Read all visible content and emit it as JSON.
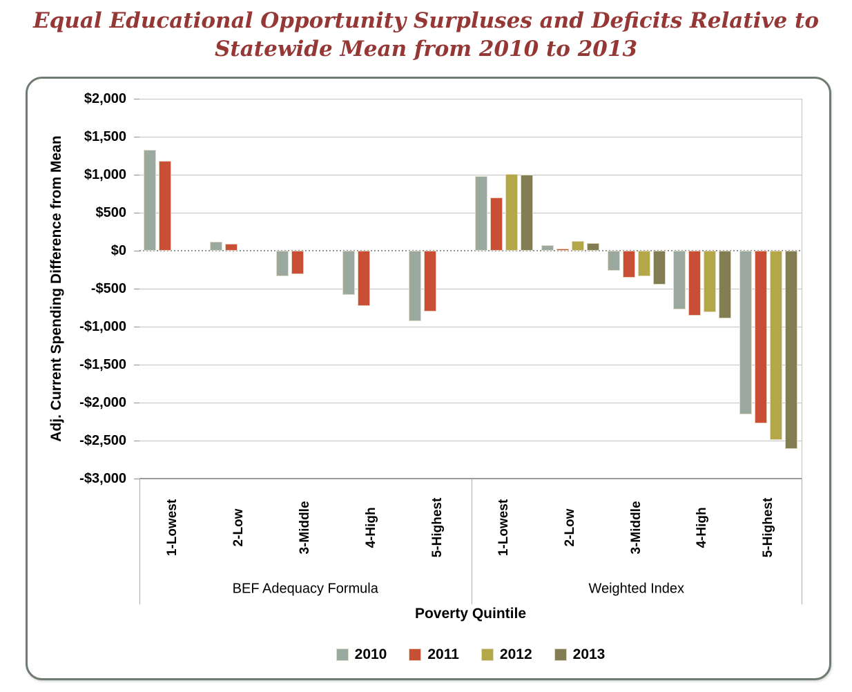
{
  "title": {
    "line1": "Equal Educational Opportunity Surpluses and Deficits Relative to",
    "line2": "Statewide Mean from 2010 to 2013",
    "color": "#943735"
  },
  "chart_data": {
    "type": "bar",
    "title": "Equal Educational Opportunity Surpluses and Deficits Relative to Statewide Mean from 2010 to 2013",
    "ylabel": "Adj. Current Spending Difference from Mean",
    "xlabel": "Poverty Quintile",
    "grid": true,
    "y_axis": {
      "min": -3000,
      "max": 2000,
      "step": 500,
      "tick_labels": [
        "$2,000",
        "$1,500",
        "$1,000",
        "$500",
        "$0",
        "-$500",
        "-$1,000",
        "-$1,500",
        "-$2,000",
        "-$2,500",
        "-$3,000"
      ]
    },
    "categories": [
      "1-Lowest",
      "2-Low",
      "3-Middle",
      "4-High",
      "5-Highest"
    ],
    "series": [
      {
        "name": "2010",
        "color": "#9BA9A0"
      },
      {
        "name": "2011",
        "color": "#C84E36"
      },
      {
        "name": "2012",
        "color": "#B4A74A"
      },
      {
        "name": "2013",
        "color": "#827D52"
      }
    ],
    "groups": [
      {
        "label": "BEF Adequacy Formula",
        "values_by_category": [
          [
            1330,
            1180,
            null,
            null
          ],
          [
            120,
            90,
            null,
            null
          ],
          [
            -340,
            -305,
            null,
            null
          ],
          [
            -580,
            -725,
            null,
            null
          ],
          [
            -930,
            -800,
            null,
            null
          ]
        ]
      },
      {
        "label": "Weighted Index",
        "values_by_category": [
          [
            980,
            700,
            1005,
            1000
          ],
          [
            70,
            25,
            130,
            100
          ],
          [
            -260,
            -350,
            -335,
            -445
          ],
          [
            -770,
            -855,
            -810,
            -895
          ],
          [
            -2150,
            -2270,
            -2490,
            -2610
          ]
        ]
      }
    ],
    "legend": {
      "position": "bottom",
      "items": [
        "2010",
        "2011",
        "2012",
        "2013"
      ]
    }
  },
  "colors": {
    "frame_border": "#6F7C71",
    "gridline": "#C2C2C2",
    "axis": "#9A9A9A",
    "text": "#000000"
  }
}
